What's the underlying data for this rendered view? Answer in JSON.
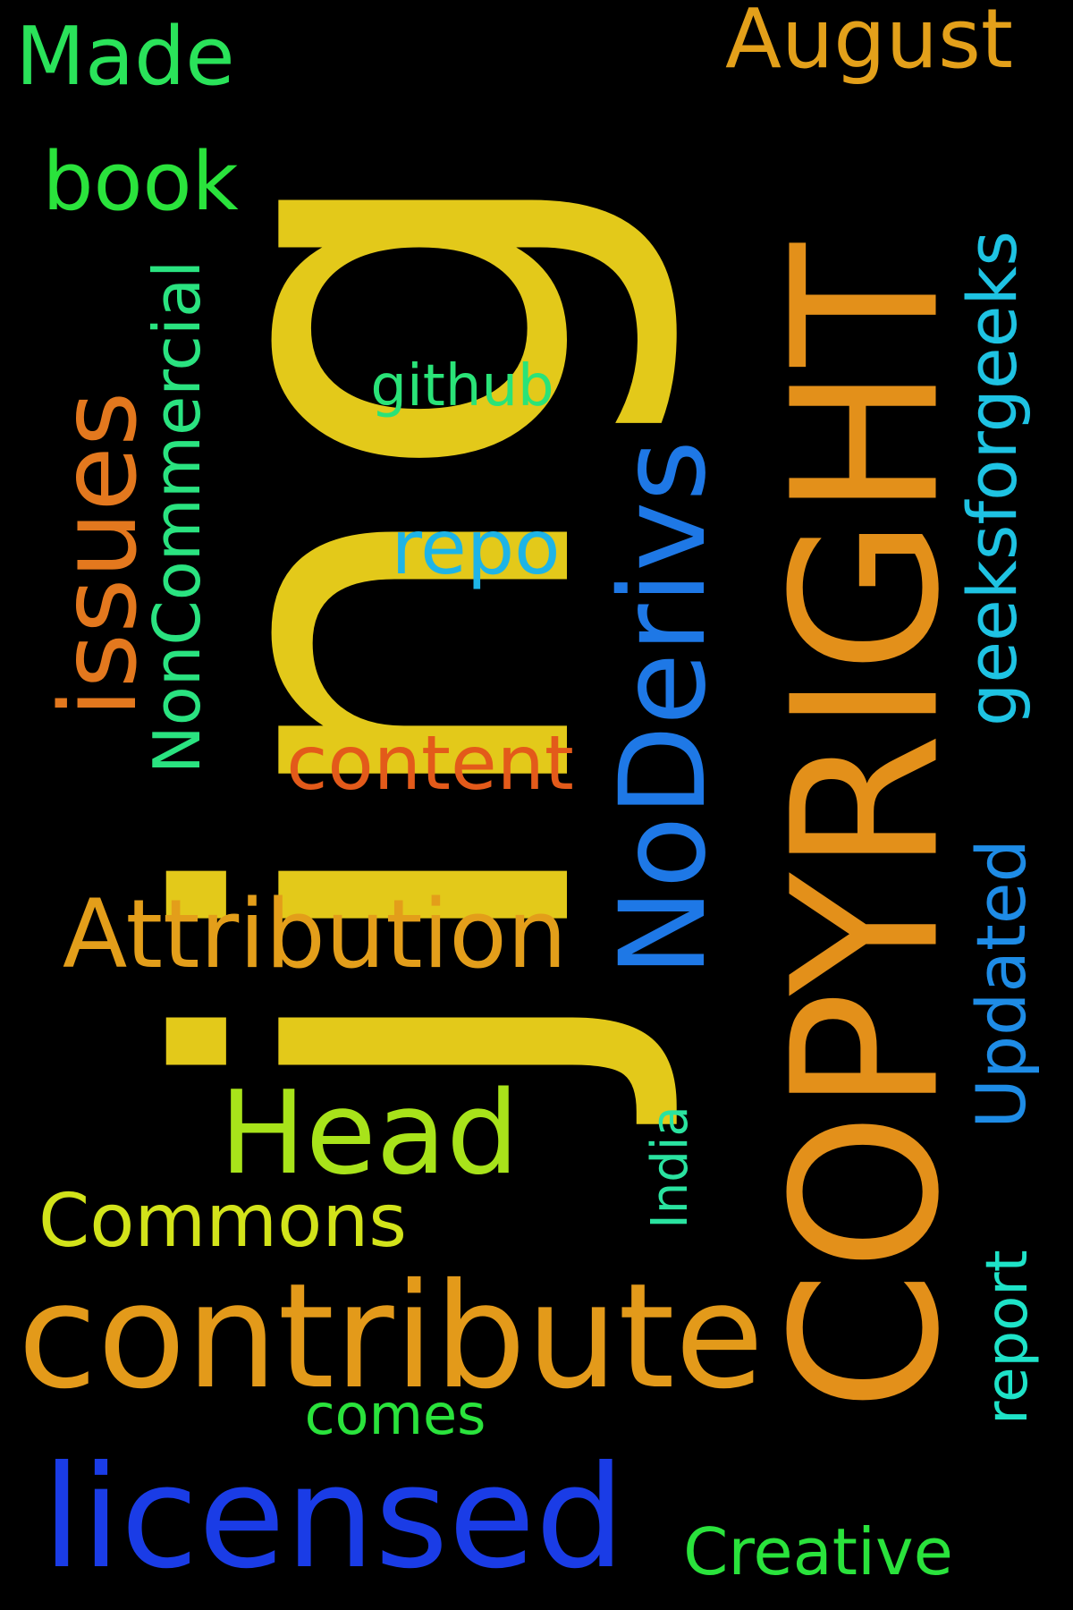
{
  "background": "#000000",
  "words": [
    {
      "key": "jing",
      "text": "jing",
      "color": "#E3C91A",
      "orientation": "vertical"
    },
    {
      "key": "copyright",
      "text": "COPYRIGHT",
      "color": "#E3901A",
      "orientation": "vertical"
    },
    {
      "key": "noderivs",
      "text": "NoDerivs",
      "color": "#1E78E6",
      "orientation": "vertical"
    },
    {
      "key": "contribute",
      "text": "contribute",
      "color": "#E39A1A",
      "orientation": "horizontal"
    },
    {
      "key": "licensed",
      "text": "licensed",
      "color": "#1A3CE6",
      "orientation": "horizontal"
    },
    {
      "key": "issues",
      "text": "issues",
      "color": "#E3781E",
      "orientation": "vertical"
    },
    {
      "key": "head",
      "text": "Head",
      "color": "#A8E31A",
      "orientation": "horizontal"
    },
    {
      "key": "attribution",
      "text": "Attribution",
      "color": "#E39E1A",
      "orientation": "horizontal"
    },
    {
      "key": "geeksforgeeks",
      "text": "geeksforgeeks",
      "color": "#1EC3E3",
      "orientation": "vertical"
    },
    {
      "key": "updated",
      "text": "Updated",
      "color": "#1E8CE6",
      "orientation": "vertical"
    },
    {
      "key": "noncommercial",
      "text": "NonCommercial",
      "color": "#2AE380",
      "orientation": "vertical"
    },
    {
      "key": "august",
      "text": "August",
      "color": "#E3A01A",
      "orientation": "horizontal"
    },
    {
      "key": "made",
      "text": "Made",
      "color": "#2AE35A",
      "orientation": "horizontal"
    },
    {
      "key": "book",
      "text": "book",
      "color": "#2AE33C",
      "orientation": "horizontal"
    },
    {
      "key": "commons",
      "text": "Commons",
      "color": "#D2E31A",
      "orientation": "horizontal"
    },
    {
      "key": "content",
      "text": "content",
      "color": "#E35A1A",
      "orientation": "horizontal"
    },
    {
      "key": "repo",
      "text": "repo",
      "color": "#1EB4E6",
      "orientation": "horizontal"
    },
    {
      "key": "github",
      "text": "github",
      "color": "#2AE378",
      "orientation": "horizontal"
    },
    {
      "key": "creative",
      "text": "Creative",
      "color": "#2AE33C",
      "orientation": "horizontal"
    },
    {
      "key": "comes",
      "text": "comes",
      "color": "#2AE33C",
      "orientation": "horizontal"
    },
    {
      "key": "report",
      "text": "report",
      "color": "#1EE3C8",
      "orientation": "vertical"
    },
    {
      "key": "india",
      "text": "India",
      "color": "#2AE3A0",
      "orientation": "vertical"
    }
  ]
}
